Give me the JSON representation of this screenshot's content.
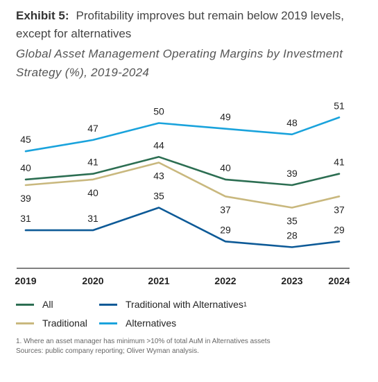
{
  "header": {
    "exhibit": "Exhibit 5:",
    "title_1": "Profitability improves but remain below 2019 levels,",
    "title_2": "except for alternatives",
    "subtitle_1": "Global Asset Management Operating Margins by Investment",
    "subtitle_2": "Strategy (%), 2019-2024"
  },
  "chart_data": {
    "type": "line",
    "title": "Global Asset Management Operating Margins by Investment Strategy (%), 2019-2024",
    "x": [
      "2019",
      "2020",
      "2021",
      "2022",
      "2023",
      "2024"
    ],
    "ylim": [
      24,
      54
    ],
    "grid": false,
    "legend_position": "bottom",
    "series": [
      {
        "name": "Alternatives",
        "color": "#1aa3dc",
        "values": [
          45,
          47,
          50,
          49,
          48,
          51
        ]
      },
      {
        "name": "All",
        "color": "#2c6e52",
        "values": [
          40,
          41,
          44,
          40,
          39,
          41
        ]
      },
      {
        "name": "Traditional",
        "color": "#c9b87e",
        "values": [
          39,
          40,
          43,
          37,
          35,
          37
        ]
      },
      {
        "name": "Traditional with Alternatives",
        "color": "#0d5a97",
        "values": [
          31,
          31,
          35,
          29,
          28,
          29
        ]
      }
    ]
  },
  "legend": {
    "all": "All",
    "traditional": "Traditional",
    "trad_alt": "Traditional with Alternatives",
    "trad_alt_sup": "1",
    "alternatives": "Alternatives"
  },
  "notes": {
    "footnote": "1. Where an asset manager has minimum >10% of total AuM in Alternatives assets",
    "source": "Sources: public company reporting; Oliver Wyman analysis."
  }
}
